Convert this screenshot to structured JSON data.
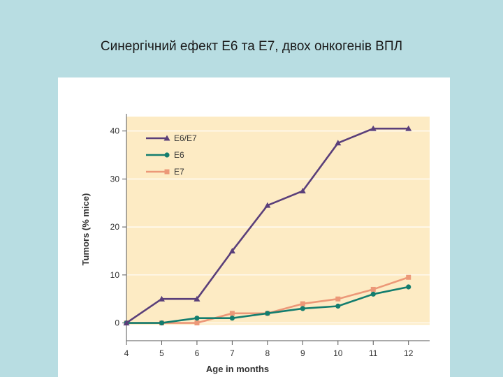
{
  "slide": {
    "title": "Синергічний ефект Е6 та Е7, двох онкогенів ВПЛ"
  },
  "colors": {
    "background": "#b8dde2",
    "plot_area": "#fdebc4",
    "e6e7": "#5a3f7a",
    "e6": "#137d6e",
    "e7": "#ec9878"
  },
  "chart_data": {
    "type": "line",
    "title": "",
    "xlabel": "Age in months",
    "ylabel": "Tumors (% mice)",
    "x": [
      4,
      5,
      6,
      7,
      8,
      9,
      10,
      11,
      12
    ],
    "xlim": [
      4,
      12.6
    ],
    "ylim": [
      -0.5,
      43
    ],
    "yticks": [
      0,
      10,
      20,
      30,
      40
    ],
    "legend_position": "top-left",
    "series": [
      {
        "name": "E6/E7",
        "marker": "triangle",
        "color": "#5a3f7a",
        "values": [
          0,
          5,
          5,
          15,
          24.5,
          27.5,
          37.5,
          40.5,
          40.5
        ]
      },
      {
        "name": "E6",
        "marker": "circle",
        "color": "#137d6e",
        "values": [
          0,
          0,
          1,
          1,
          2,
          3,
          3.5,
          6,
          7.5
        ]
      },
      {
        "name": "E7",
        "marker": "square",
        "color": "#ec9878",
        "values": [
          0,
          0,
          0,
          2,
          2,
          4,
          5,
          7,
          9.5
        ]
      }
    ]
  }
}
